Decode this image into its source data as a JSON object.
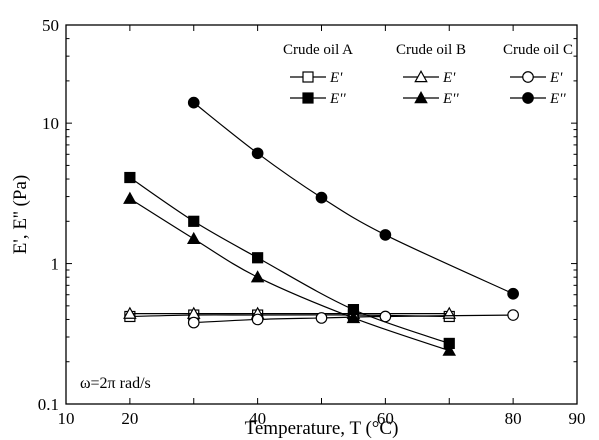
{
  "chart_data": {
    "type": "line",
    "xlabel": "Temperature, T (°C)",
    "ylabel": "E', E'' (Pa)",
    "xlim": [
      10,
      90
    ],
    "ylim": [
      0.1,
      50
    ],
    "yscale": "log",
    "grid": false,
    "legend_placement": "top-right",
    "xticks": [
      10,
      20,
      30,
      40,
      50,
      60,
      70,
      80,
      90
    ],
    "xtick_labels": [
      "10",
      "20",
      "40",
      "60",
      "80",
      "90"
    ],
    "xtick_label_values": [
      10,
      20,
      40,
      60,
      80,
      90
    ],
    "yticks": [
      0.1,
      1,
      10,
      50
    ],
    "ytick_labels": [
      "0.1",
      "1",
      "10",
      "50"
    ],
    "annotation": "ω=2π rad/s",
    "legend_groups": [
      "Crude oil A",
      "Crude oil B",
      "Crude oil C"
    ],
    "series": [
      {
        "group": "Crude oil A",
        "name": "E'",
        "marker": "square",
        "filled": false,
        "x": [
          20,
          30,
          40,
          55,
          70
        ],
        "y": [
          0.42,
          0.43,
          0.43,
          0.43,
          0.42
        ]
      },
      {
        "group": "Crude oil A",
        "name": "E''",
        "marker": "square",
        "filled": true,
        "x": [
          20,
          30,
          40,
          55,
          70
        ],
        "y": [
          4.1,
          2.0,
          1.1,
          0.47,
          0.27
        ]
      },
      {
        "group": "Crude oil B",
        "name": "E'",
        "marker": "triangle",
        "filled": false,
        "x": [
          20,
          30,
          40,
          55,
          70
        ],
        "y": [
          0.44,
          0.44,
          0.44,
          0.44,
          0.44
        ]
      },
      {
        "group": "Crude oil B",
        "name": "E''",
        "marker": "triangle",
        "filled": true,
        "x": [
          20,
          30,
          40,
          55,
          70
        ],
        "y": [
          2.9,
          1.5,
          0.8,
          0.41,
          0.24
        ]
      },
      {
        "group": "Crude oil C",
        "name": "E'",
        "marker": "circle",
        "filled": false,
        "x": [
          30,
          40,
          50,
          60,
          80
        ],
        "y": [
          0.38,
          0.4,
          0.41,
          0.42,
          0.43
        ]
      },
      {
        "group": "Crude oil C",
        "name": "E''",
        "marker": "circle",
        "filled": true,
        "x": [
          30,
          40,
          50,
          60,
          80
        ],
        "y": [
          14.0,
          6.1,
          2.95,
          1.6,
          0.61
        ]
      }
    ]
  }
}
